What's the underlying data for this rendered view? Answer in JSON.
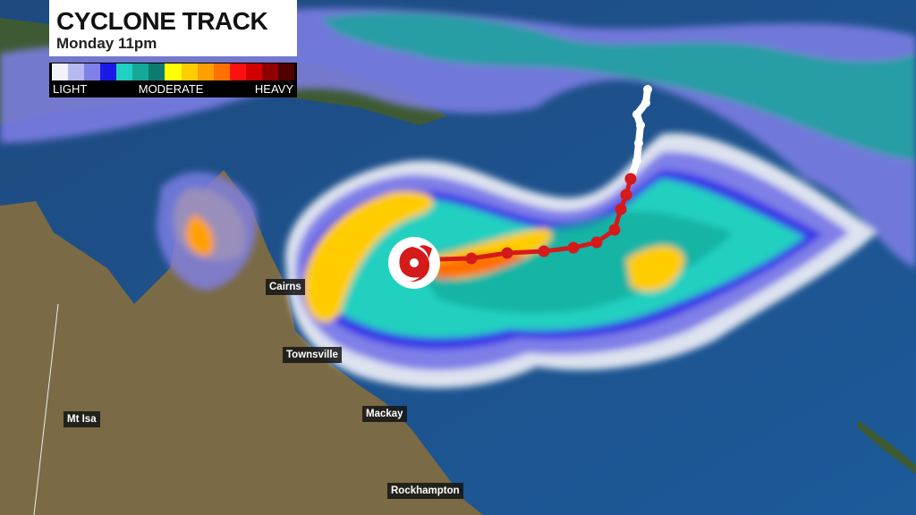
{
  "header": {
    "title": "CYCLONE TRACK",
    "subtitle": "Monday 11pm"
  },
  "legend": {
    "colors": [
      "#f2f2fa",
      "#b8b8f0",
      "#7f7fe8",
      "#1a1ae8",
      "#20d0c0",
      "#14a898",
      "#0e7a70",
      "#ffff00",
      "#ffcc00",
      "#ffa000",
      "#ff7000",
      "#ff1010",
      "#d00000",
      "#900000",
      "#500000"
    ],
    "labels": {
      "light": "LIGHT",
      "moderate": "MODERATE",
      "heavy": "HEAVY"
    }
  },
  "cities": [
    {
      "name": "Cairns"
    },
    {
      "name": "Townsville"
    },
    {
      "name": "Mt Isa"
    },
    {
      "name": "Mackay"
    },
    {
      "name": "Rockhampton"
    }
  ],
  "cyclone": {
    "icon": "cyclone-icon",
    "track_past_color": "#ffffff",
    "track_forecast_color": "#d41a1a"
  },
  "colors": {
    "ocean": "#1d4f88",
    "land": "#7a6a45"
  }
}
